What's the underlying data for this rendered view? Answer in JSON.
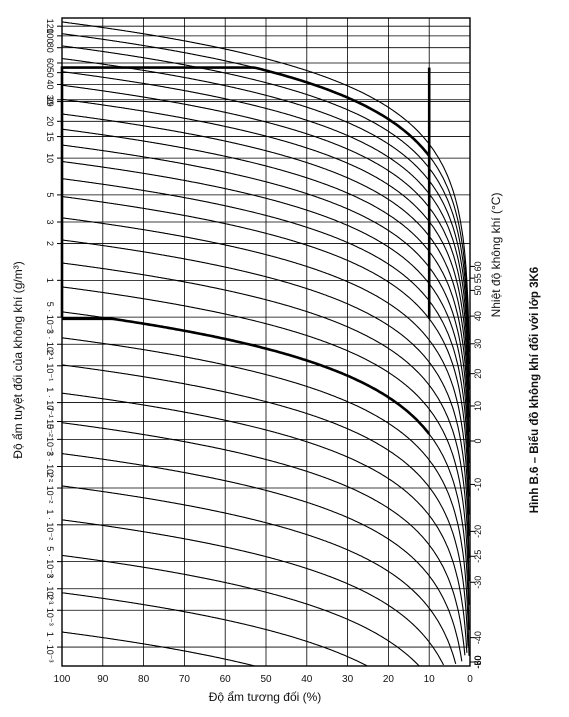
{
  "chart_data": {
    "type": "line",
    "caption": "Hình B.6 – Biểu đồ không khí đối với lớp 3K6",
    "xlabel": "Độ ẩm tương đối (%)",
    "ylabel": "Độ ẩm tuyệt đối của không khí (g/m³)",
    "y2label": "Nhiệt độ không khí (°C)",
    "x_ticks": [
      "100",
      "90",
      "80",
      "70",
      "60",
      "50",
      "40",
      "30",
      "20",
      "10",
      "0"
    ],
    "xlim": [
      0,
      100
    ],
    "x_direction": "reversed",
    "y_scale": "log",
    "ylim": [
      0.0007,
      140
    ],
    "y_ticks": [
      {
        "v": 0.001,
        "t": "1 · 10⁻³"
      },
      {
        "v": 0.002,
        "t": "2 · 10⁻³"
      },
      {
        "v": 0.003,
        "t": "3 · 10⁻³"
      },
      {
        "v": 0.005,
        "t": "5 · 10⁻³"
      },
      {
        "v": 0.01,
        "t": "1 · 10⁻²"
      },
      {
        "v": 0.02,
        "t": "2 · 10⁻²"
      },
      {
        "v": 0.03,
        "t": "3 · 10⁻²"
      },
      {
        "v": 0.05,
        "t": "5 · 10⁻²"
      },
      {
        "v": 0.07,
        "t": "7 · 10⁻²"
      },
      {
        "v": 0.1,
        "t": "1 · 10⁻¹"
      },
      {
        "v": 0.2,
        "t": "2 · 10⁻¹"
      },
      {
        "v": 0.3,
        "t": "3 · 10⁻¹"
      },
      {
        "v": 0.5,
        "t": "5 · 10⁻¹"
      },
      {
        "v": 1,
        "t": "1"
      },
      {
        "v": 2,
        "t": "2"
      },
      {
        "v": 3,
        "t": "3"
      },
      {
        "v": 5,
        "t": "5"
      },
      {
        "v": 10,
        "t": "10"
      },
      {
        "v": 15,
        "t": "15"
      },
      {
        "v": 20,
        "t": "20"
      },
      {
        "v": 29,
        "t": "29"
      },
      {
        "v": 30,
        "t": "30"
      },
      {
        "v": 40,
        "t": "40"
      },
      {
        "v": 50,
        "t": "50"
      },
      {
        "v": 60,
        "t": "60"
      },
      {
        "v": 80,
        "t": "80"
      },
      {
        "v": 100,
        "t": "100"
      },
      {
        "v": 120,
        "t": "120"
      }
    ],
    "temperature_ticks": [
      "-80",
      "-70",
      "-60",
      "-50",
      "-40",
      "-30",
      "-25",
      "-20",
      "-10",
      "0",
      "10",
      "20",
      "30",
      "40",
      "50",
      "55",
      "60"
    ],
    "temperature_values": [
      -80,
      -70,
      -60,
      -50,
      -40,
      -30,
      -25,
      -20,
      -10,
      0,
      10,
      20,
      30,
      40,
      50,
      55,
      60
    ],
    "curve_temperatures": [
      -80,
      -75,
      -70,
      -65,
      -60,
      -55,
      -50,
      -45,
      -40,
      -35,
      -30,
      -25,
      -20,
      -15,
      -10,
      -5,
      0,
      5,
      10,
      15,
      20,
      25,
      30,
      35,
      40,
      45,
      50,
      55,
      60
    ],
    "boundary": {
      "points": [
        [
          100,
          0.5
        ],
        [
          100,
          29
        ],
        [
          10,
          55
        ],
        [
          10,
          0.5
        ]
      ],
      "upper_curve_temperature": 55,
      "lower_curve_temperature": -25,
      "lower_curve_rh_range": [
        10,
        100
      ]
    },
    "grid": true
  }
}
